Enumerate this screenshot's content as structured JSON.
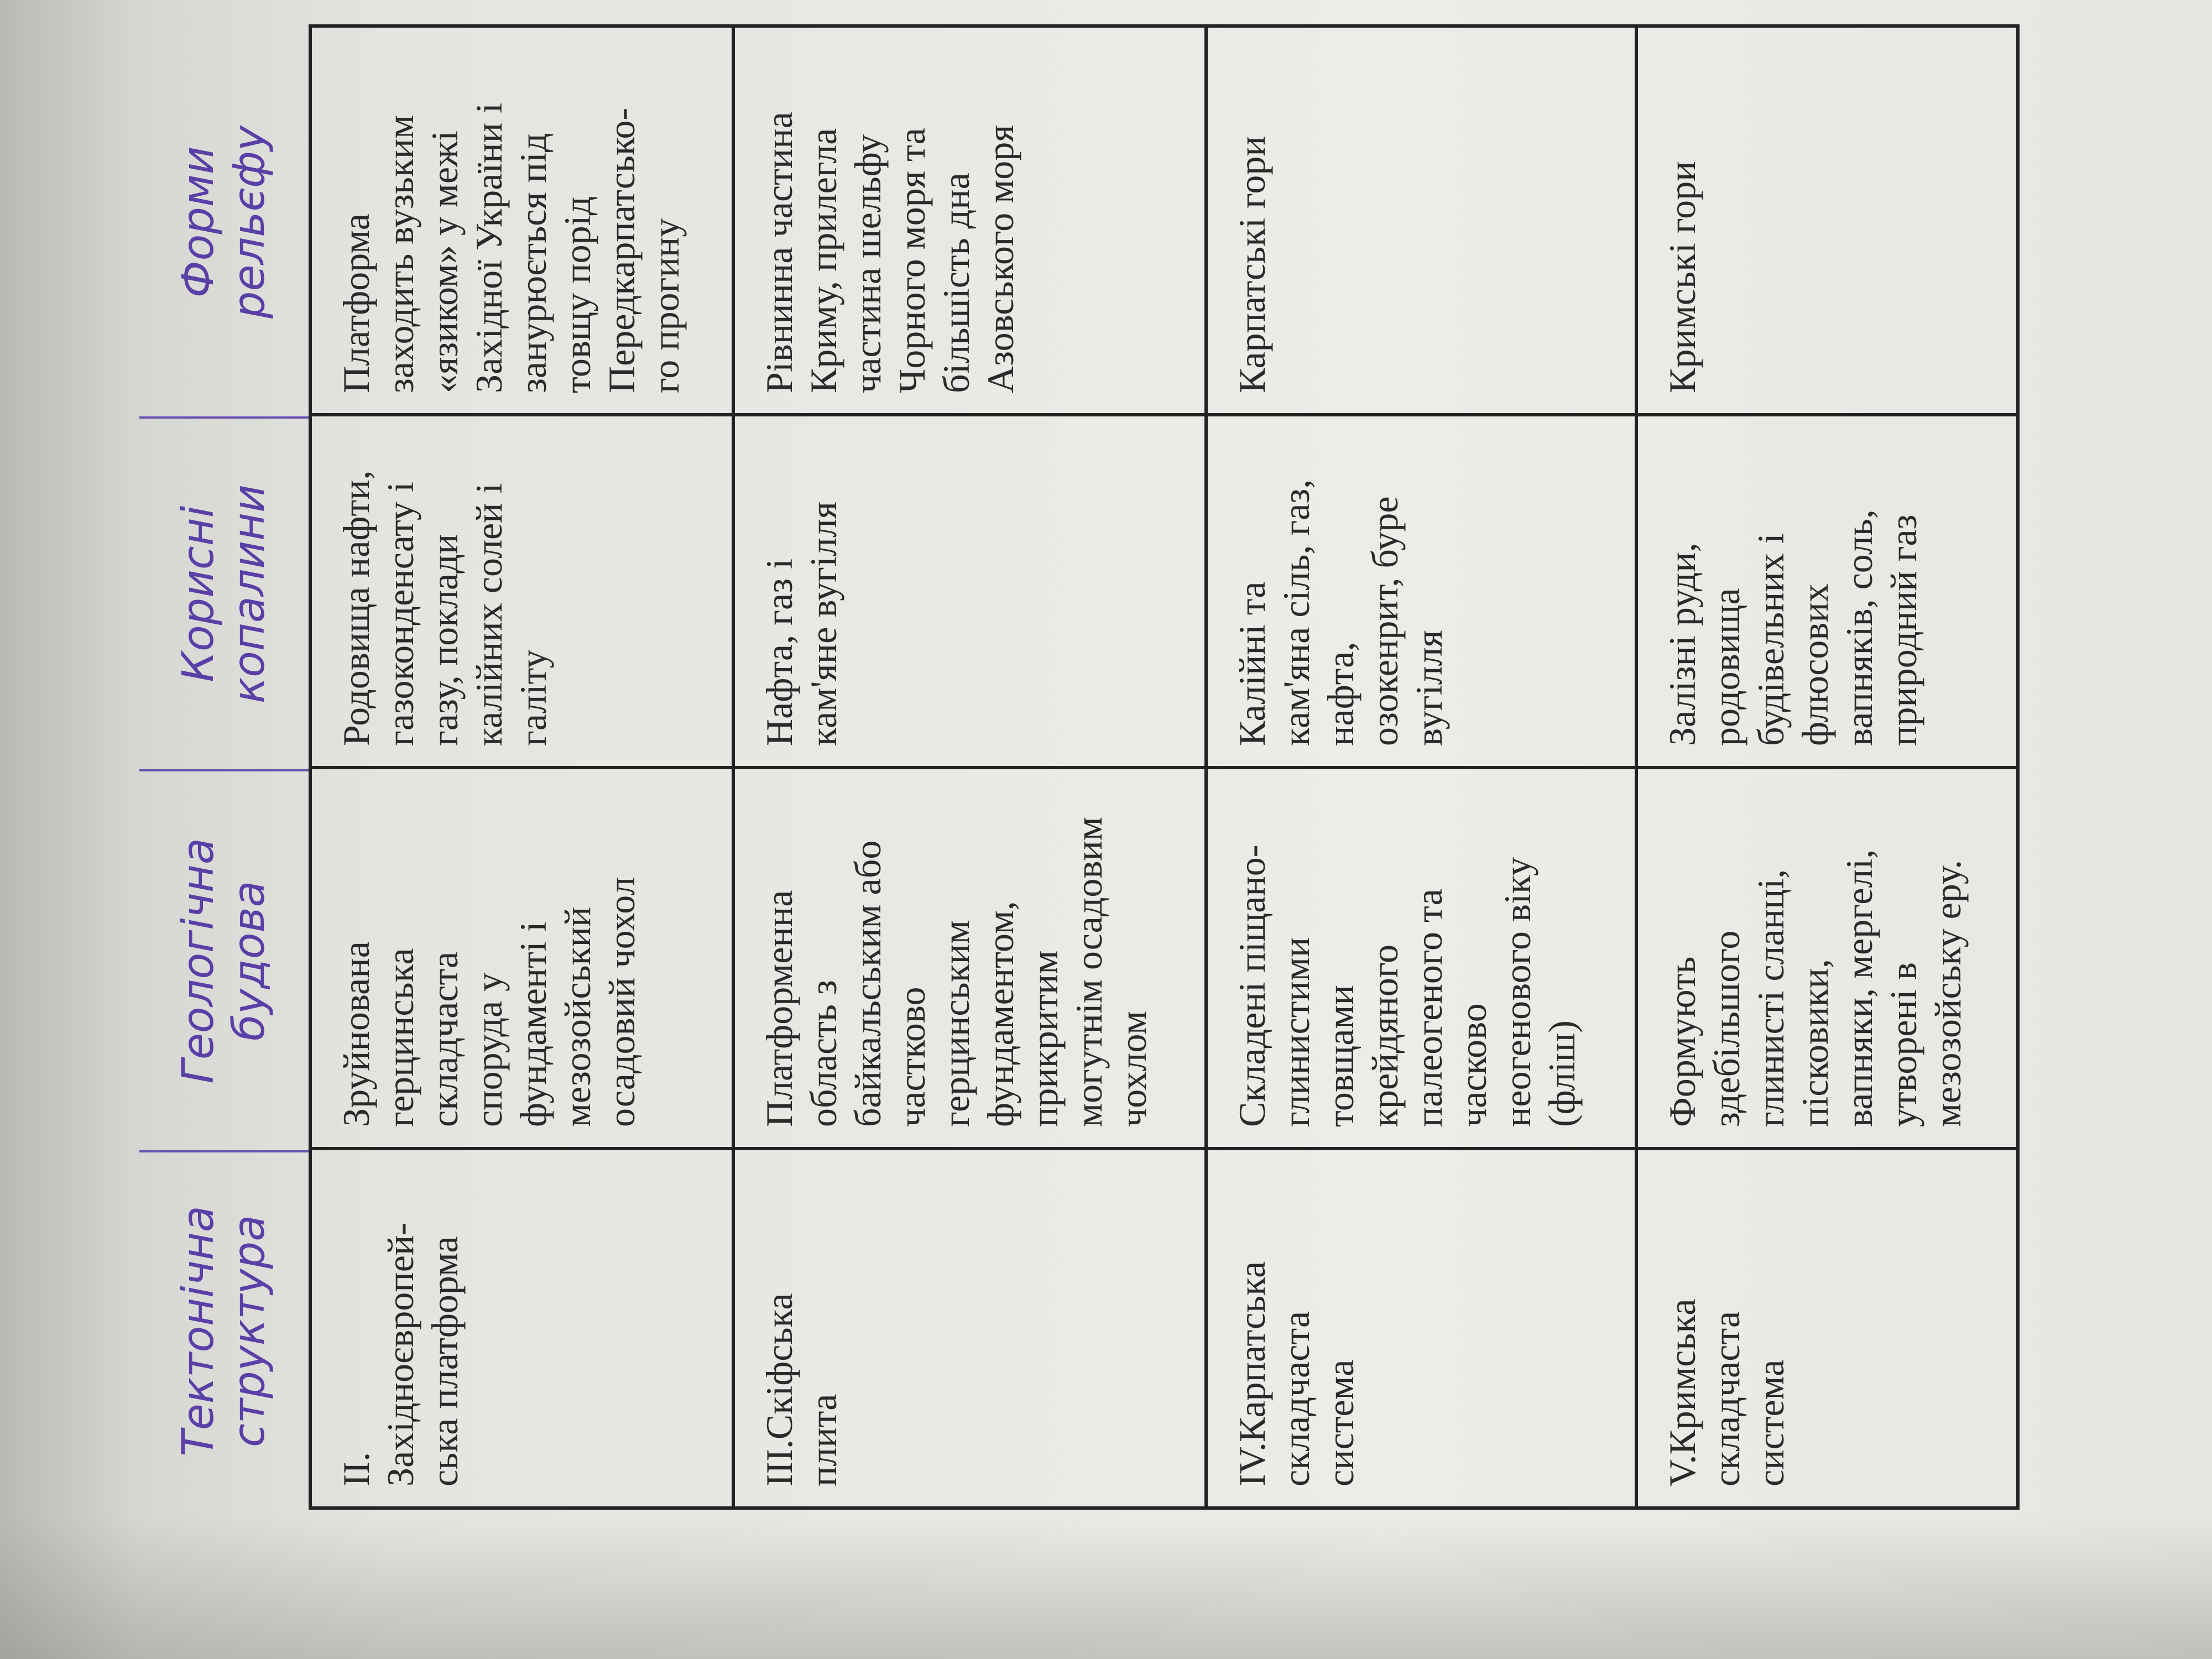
{
  "headers": [
    "Тектонічна\nструктура",
    "Геологічна\nбудова",
    "Корисні\nкопалини",
    "Форми\nрельєфу"
  ],
  "colors": {
    "handwriting": "#5a3fa6",
    "print": "#2a2a2a",
    "paper": "#ecece8"
  },
  "rows": [
    [
      "ІІ.\nЗахідноєвропей-\nська платформа",
      "Зруйнована\nгерцинська\nскладчаста\nспоруда у\nфундаменті і\nмезозойський\nосадовий чохол",
      "Родовища нафти,\nгазоконденсату і\nгазу, поклади\nкалійних солей і\nгаліту",
      "Платформа\nзаходить вузьким\n«язиком» у межі\nЗахідної України і\nзанурюється під\nтовщу порід\nПередкарпатсько-\nго прогину"
    ],
    [
      "ІІІ.Скіфська\nплита",
      "Платформенна\nобласть з\nбайкальським або\nчастково\nгерцинським\nфундаментом,\nприкритим\nмогутнім осадовим\nчохлом",
      "Нафта, газ і\nкам'яне вугілля",
      "Рівнинна частина\nКриму, прилегла\nчастина шельфу\nЧорного моря та\nбільшість дна\nАзовського моря"
    ],
    [
      "IV.Карпатська\nскладчаста\nсистема",
      "Складені піщано-\nглинистими\nтовщами\nкрейдяного\nпалеогеного та\nчасково\nнеогенового віку\n(фліш)",
      "Калійні та\nкам'яна сіль, газ,\nнафта,\nозокенрит, буре\nвугілля",
      "Карпатські гори"
    ],
    [
      "V.Кримська\nскладчаста\nсистема",
      "Формують\nздебільшого\nглинисті сланці,\nпісковики,\nвапняки, мергелі,\nутворені в\nмезозойську еру.",
      "Залізні руди,\nродовища\nбудівельних і\nфлюсових\nвапняків, соль,\nприродний газ",
      "Кримські гори"
    ]
  ]
}
